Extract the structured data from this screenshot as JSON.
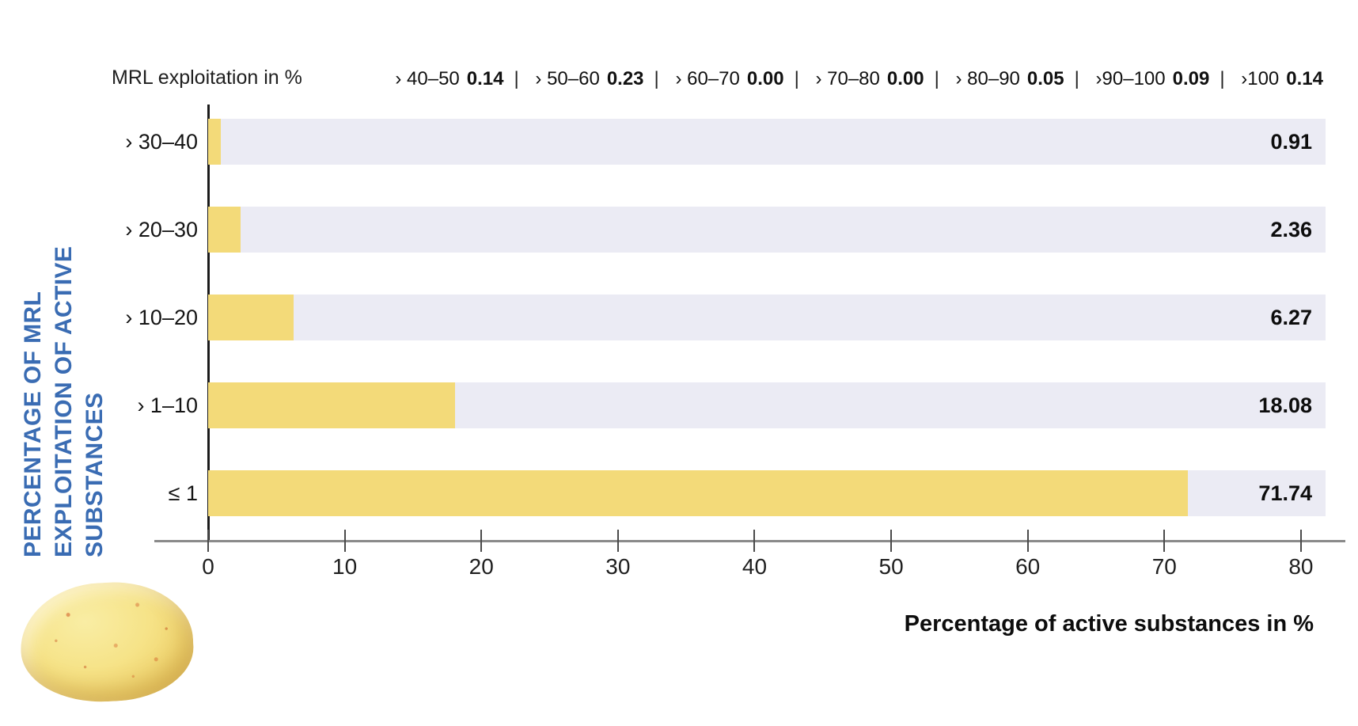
{
  "chart_data": {
    "type": "bar",
    "orientation": "horizontal",
    "axis_unit_label": "MRL exploitation in %",
    "categories": [
      "› 30–40",
      "› 20–30",
      "› 10–20",
      "› 1–10",
      "≤ 1"
    ],
    "values": [
      0.91,
      2.36,
      6.27,
      18.08,
      71.74
    ],
    "value_labels": [
      "0.91",
      "2.36",
      "6.27",
      "18.08",
      "71.74"
    ],
    "overflow_bins": [
      {
        "range": "› 40–50",
        "value": "0.14"
      },
      {
        "range": "› 50–60",
        "value": "0.23"
      },
      {
        "range": "› 60–70",
        "value": "0.00"
      },
      {
        "range": "› 70–80",
        "value": "0.00"
      },
      {
        "range": "› 80–90",
        "value": "0.05"
      },
      {
        "range": "›90–100",
        "value": "0.09"
      },
      {
        "range": "›100",
        "value": "0.14"
      }
    ],
    "legend_separator": "|",
    "x_ticks": [
      "0",
      "10",
      "20",
      "30",
      "40",
      "50",
      "60",
      "70",
      "80"
    ],
    "xlim": [
      0,
      81.8
    ],
    "xlabel": "Percentage of active substances in %",
    "ylabel_lines": [
      "PERCENTAGE OF MRL",
      "EXPLOITATION OF ACTIVE",
      "SUBSTANCES"
    ],
    "grid": false,
    "legend_position": "top-right",
    "colors": {
      "bar": "#f3da79",
      "track": "#ebebf4",
      "ylabel_text": "#3a6cb3"
    }
  },
  "icons": {
    "potato_image": "potato-photo"
  }
}
